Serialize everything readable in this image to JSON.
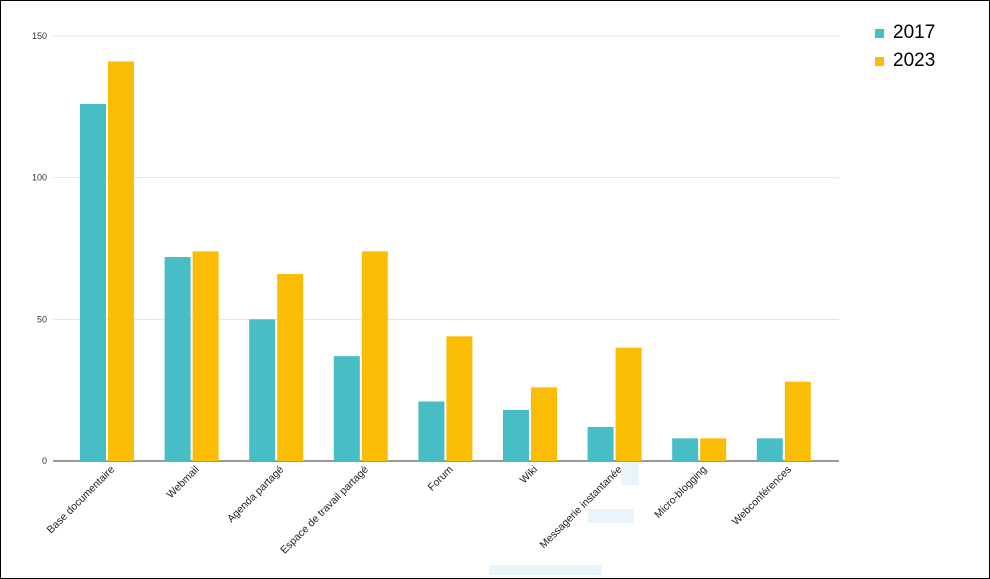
{
  "chart_data": {
    "type": "bar",
    "title": "",
    "xlabel": "",
    "ylabel": "",
    "ylim": [
      0,
      150
    ],
    "yticks": [
      0,
      50,
      100,
      150
    ],
    "grid": true,
    "legend_position": "top-right",
    "categories": [
      "Base documentaire",
      "Webmail",
      "Agenda partagé",
      "Espace de travail partagé",
      "Forum",
      "Wiki",
      "Messagerie instantanée",
      "Micro-blogging",
      "Webconférences"
    ],
    "series": [
      {
        "name": "2017",
        "color": "#47BDC6",
        "values": [
          126,
          72,
          50,
          37,
          21,
          18,
          12,
          8,
          8
        ]
      },
      {
        "name": "2023",
        "color": "#FBBC04",
        "values": [
          141,
          74,
          66,
          74,
          44,
          26,
          40,
          8,
          28
        ]
      }
    ]
  }
}
